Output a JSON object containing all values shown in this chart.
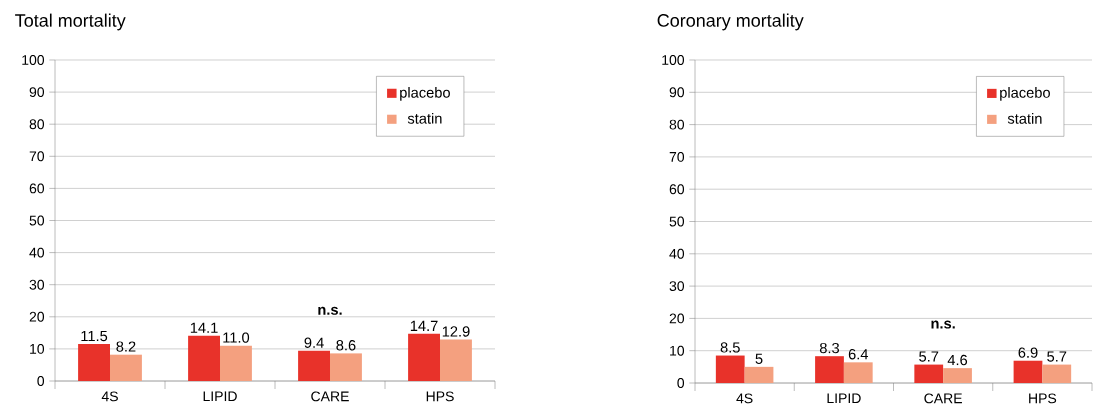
{
  "chart_data": [
    {
      "type": "bar",
      "title": "Total mortality",
      "categories": [
        "4S",
        "LIPID",
        "CARE",
        "HPS"
      ],
      "series": [
        {
          "name": "placebo",
          "color": "#e8322a",
          "values": [
            11.5,
            14.1,
            9.4,
            14.7
          ],
          "value_labels": [
            "11.5",
            "14.1",
            "9.4",
            "14.7"
          ]
        },
        {
          "name": "statin",
          "color": "#f4a07f",
          "values": [
            8.2,
            11.0,
            8.6,
            12.9
          ],
          "value_labels": [
            "8.2",
            "11.0",
            "8.6",
            "12.9"
          ]
        }
      ],
      "ylim": [
        0,
        100
      ],
      "yticks": [
        0,
        10,
        20,
        30,
        40,
        50,
        60,
        70,
        80,
        90,
        100
      ],
      "grid": "y",
      "legend": "top right",
      "annotations": [
        "n.s."
      ]
    },
    {
      "type": "bar",
      "title": "Coronary mortality",
      "categories": [
        "4S",
        "LIPID",
        "CARE",
        "HPS"
      ],
      "series": [
        {
          "name": "placebo",
          "color": "#e8322a",
          "values": [
            8.5,
            8.3,
            5.7,
            6.9
          ],
          "value_labels": [
            "8.5",
            "8.3",
            "5.7",
            "6.9"
          ]
        },
        {
          "name": "statin",
          "color": "#f4a07f",
          "values": [
            5,
            6.4,
            4.6,
            5.7
          ],
          "value_labels": [
            "5",
            "6.4",
            "4.6",
            "5.7"
          ]
        }
      ],
      "ylim": [
        0,
        100
      ],
      "yticks": [
        0,
        10,
        20,
        30,
        40,
        50,
        60,
        70,
        80,
        90,
        100
      ],
      "grid": "y",
      "legend": "top right",
      "annotations": [
        "n.s."
      ]
    }
  ]
}
